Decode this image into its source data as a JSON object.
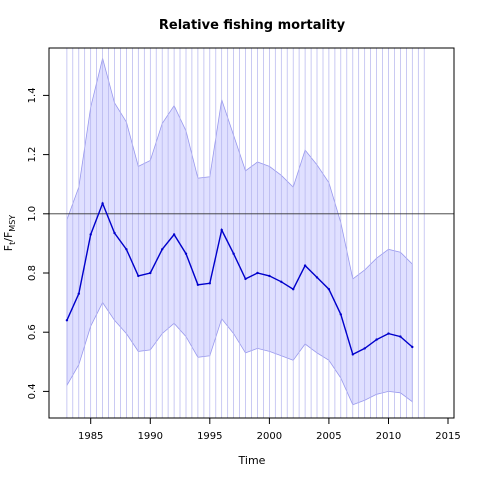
{
  "chart_data": {
    "type": "line",
    "title": "Relative fishing mortality",
    "xlabel": "Time",
    "ylabel_main": "F",
    "ylabel_sub1": "t",
    "ylabel_mid": "/F",
    "ylabel_sub2": "MSY",
    "xlim": [
      1981.5,
      2015.5
    ],
    "ylim": [
      0.31,
      1.56
    ],
    "x_ticks": [
      1985,
      1990,
      1995,
      2000,
      2005,
      2010,
      2015
    ],
    "x_tick_labels": [
      "1985",
      "1990",
      "1995",
      "2000",
      "2005",
      "2010",
      "2015"
    ],
    "y_ticks": [
      0.4,
      0.6,
      0.8,
      1.0,
      1.2,
      1.4
    ],
    "y_tick_labels": [
      "0.4",
      "0.6",
      "0.8",
      "1.0",
      "1.2",
      "1.4"
    ],
    "reference_line": 1.0,
    "grid": false,
    "colors": {
      "line": "#0000cc",
      "band_fill": "#e0e0ff",
      "band_edge": "#9999ee",
      "vlines": "#b3b3ee",
      "reference": "#333333"
    },
    "x": [
      1983,
      1984,
      1985,
      1986,
      1987,
      1988,
      1989,
      1990,
      1991,
      1992,
      1993,
      1994,
      1995,
      1996,
      1997,
      1998,
      1999,
      2000,
      2001,
      2002,
      2003,
      2004,
      2005,
      2006,
      2007,
      2008,
      2009,
      2010,
      2011,
      2012
    ],
    "series": [
      {
        "role": "median",
        "values": [
          0.64,
          0.73,
          0.93,
          1.035,
          0.935,
          0.88,
          0.79,
          0.8,
          0.88,
          0.93,
          0.865,
          0.76,
          0.765,
          0.945,
          0.865,
          0.78,
          0.8,
          0.79,
          0.77,
          0.745,
          0.825,
          0.785,
          0.745,
          0.66,
          0.525,
          0.545,
          0.575,
          0.595,
          0.585,
          0.55
        ]
      },
      {
        "role": "upper",
        "values": [
          0.98,
          1.09,
          1.36,
          1.525,
          1.375,
          1.31,
          1.16,
          1.18,
          1.305,
          1.365,
          1.28,
          1.12,
          1.125,
          1.385,
          1.265,
          1.145,
          1.175,
          1.16,
          1.13,
          1.09,
          1.215,
          1.165,
          1.105,
          0.97,
          0.78,
          0.81,
          0.85,
          0.88,
          0.87,
          0.83
        ]
      },
      {
        "role": "lower",
        "values": [
          0.42,
          0.49,
          0.62,
          0.7,
          0.64,
          0.595,
          0.535,
          0.54,
          0.595,
          0.63,
          0.585,
          0.515,
          0.52,
          0.645,
          0.595,
          0.53,
          0.545,
          0.535,
          0.52,
          0.505,
          0.56,
          0.53,
          0.505,
          0.445,
          0.355,
          0.37,
          0.39,
          0.4,
          0.395,
          0.365
        ]
      }
    ],
    "vlines_x": [
      1983,
      1983.5,
      1984,
      1984.5,
      1985,
      1985.5,
      1986,
      1986.5,
      1987,
      1987.5,
      1988,
      1988.5,
      1989,
      1989.5,
      1990,
      1990.5,
      1991,
      1991.5,
      1992,
      1992.5,
      1993,
      1993.5,
      1994,
      1994.5,
      1995,
      1995.5,
      1996,
      1996.5,
      1997,
      1997.5,
      1998,
      1998.5,
      1999,
      1999.5,
      2000,
      2000.5,
      2001,
      2001.5,
      2002,
      2002.5,
      2003,
      2003.5,
      2004,
      2004.5,
      2005,
      2005.5,
      2006,
      2006.5,
      2007,
      2007.5,
      2008,
      2008.5,
      2009,
      2009.5,
      2010,
      2010.5,
      2011,
      2011.5,
      2012,
      2012.5,
      2013
    ]
  }
}
